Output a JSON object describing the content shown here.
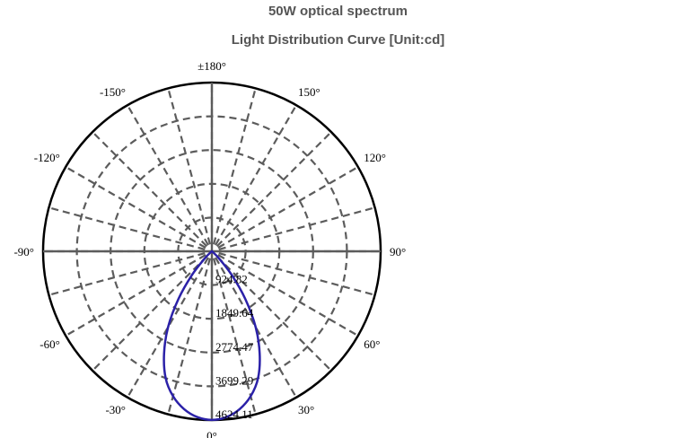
{
  "titles": {
    "main": "50W optical spectrum",
    "sub": "Light Distribution Curve [Unit:cd]"
  },
  "chart_data": {
    "type": "polar-line",
    "title": "Light Distribution Curve [Unit:cd]",
    "unit": "cd",
    "angle_labels": [
      {
        "angle": 180,
        "text": "±180°"
      },
      {
        "angle": -150,
        "text": "-150°"
      },
      {
        "angle": 150,
        "text": "150°"
      },
      {
        "angle": -120,
        "text": "-120°"
      },
      {
        "angle": 120,
        "text": "120°"
      },
      {
        "angle": -90,
        "text": "-90°"
      },
      {
        "angle": 90,
        "text": "90°"
      },
      {
        "angle": -60,
        "text": "-60°"
      },
      {
        "angle": 60,
        "text": "60°"
      },
      {
        "angle": -30,
        "text": "-30°"
      },
      {
        "angle": 30,
        "text": "30°"
      },
      {
        "angle": 0,
        "text": "0°"
      }
    ],
    "rings": [
      {
        "value": 924.82,
        "text": "924.82"
      },
      {
        "value": 1849.64,
        "text": "1849.64"
      },
      {
        "value": 2774.47,
        "text": "2774.47"
      },
      {
        "value": 3699.29,
        "text": "3699.29"
      },
      {
        "value": 4624.11,
        "text": "4624.11"
      }
    ],
    "r_max": 4624.11,
    "spoke_step_deg": 15,
    "grid": true,
    "series": [
      {
        "color": "#2b21a8",
        "points": [
          {
            "angle": 0,
            "value": 4620
          },
          {
            "angle": 5,
            "value": 4560
          },
          {
            "angle": 10,
            "value": 4390
          },
          {
            "angle": 15,
            "value": 4110
          },
          {
            "angle": 20,
            "value": 3700
          },
          {
            "angle": 25,
            "value": 3100
          },
          {
            "angle": 30,
            "value": 2400
          },
          {
            "angle": 35,
            "value": 1600
          },
          {
            "angle": 40,
            "value": 850
          },
          {
            "angle": 45,
            "value": 280
          },
          {
            "angle": 50,
            "value": 40
          },
          {
            "angle": 60,
            "value": 0
          },
          {
            "angle": -60,
            "value": 0
          },
          {
            "angle": -50,
            "value": 40
          },
          {
            "angle": -45,
            "value": 280
          },
          {
            "angle": -40,
            "value": 850
          },
          {
            "angle": -35,
            "value": 1600
          },
          {
            "angle": -30,
            "value": 2400
          },
          {
            "angle": -25,
            "value": 3100
          },
          {
            "angle": -20,
            "value": 3700
          },
          {
            "angle": -15,
            "value": 4110
          },
          {
            "angle": -10,
            "value": 4390
          },
          {
            "angle": -5,
            "value": 4560
          }
        ]
      }
    ]
  }
}
